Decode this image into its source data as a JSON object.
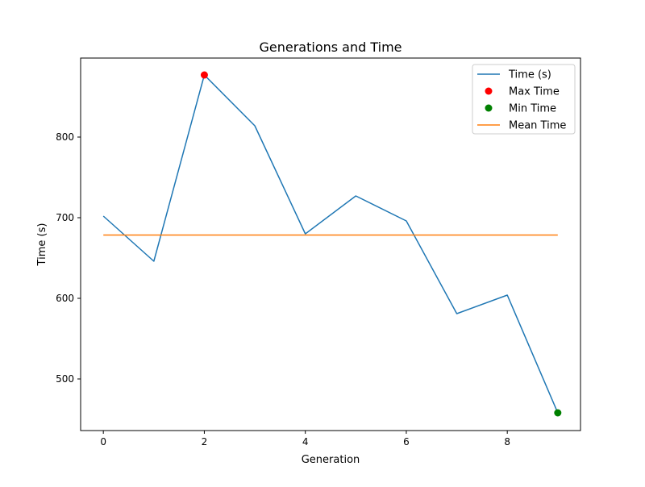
{
  "chart_data": {
    "type": "line",
    "title": "Generations and Time",
    "xlabel": "Generation",
    "ylabel": "Time (s)",
    "xlim": [
      -0.45,
      9.45
    ],
    "ylim": [
      436,
      898
    ],
    "xticks": [
      0,
      2,
      4,
      6,
      8
    ],
    "yticks": [
      500,
      600,
      700,
      800
    ],
    "grid": false,
    "legend_position": "top-right",
    "series": [
      {
        "name": "Time (s)",
        "type": "line",
        "color": "#1f77b4",
        "x": [
          0,
          1,
          2,
          3,
          4,
          5,
          6,
          7,
          8,
          9
        ],
        "y": [
          702,
          646,
          877,
          814,
          680,
          727,
          696,
          581,
          604,
          458
        ]
      },
      {
        "name": "Max Time",
        "type": "scatter",
        "color": "#ff0000",
        "x": [
          2
        ],
        "y": [
          877
        ]
      },
      {
        "name": "Min Time",
        "type": "scatter",
        "color": "#008000",
        "x": [
          9
        ],
        "y": [
          458
        ]
      },
      {
        "name": "Mean Time",
        "type": "line",
        "color": "#ff7f0e",
        "x": [
          0,
          9
        ],
        "y": [
          678.5,
          678.5
        ]
      }
    ]
  }
}
